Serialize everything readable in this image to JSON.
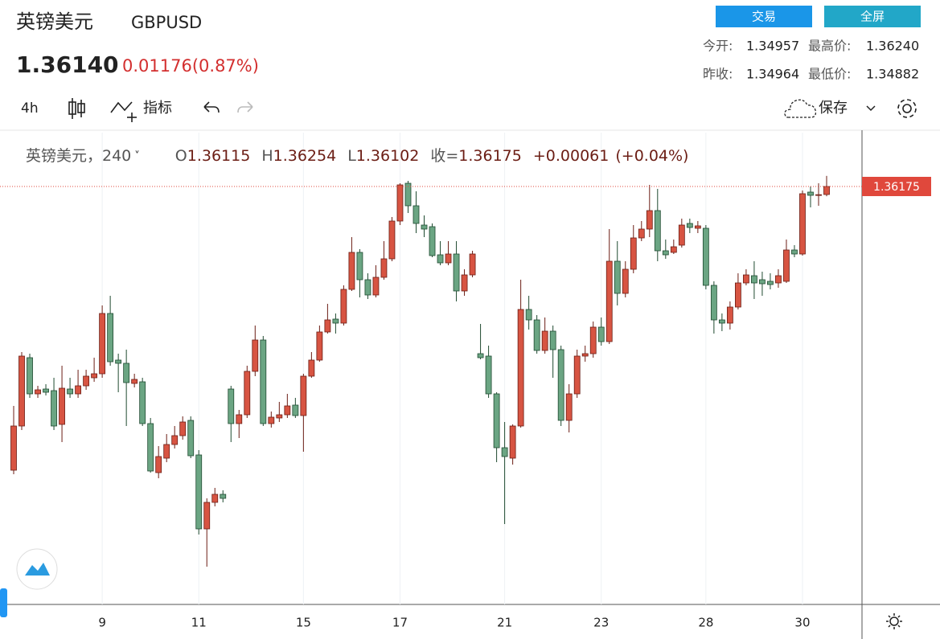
{
  "header": {
    "name": "英镑美元",
    "symbol": "GBPUSD",
    "price": "1.36140",
    "change": "0.01176(0.87%)",
    "buttons": [
      "交易",
      "全屏"
    ],
    "stats": [
      {
        "label": "今开:",
        "value": "1.34957"
      },
      {
        "label": "最高价:",
        "value": "1.36240"
      },
      {
        "label": "昨收:",
        "value": "1.34964"
      },
      {
        "label": "最低价:",
        "value": "1.34882"
      }
    ]
  },
  "toolbar": {
    "interval": "4h",
    "indicators": "指标",
    "save": "保存"
  },
  "chart_data": {
    "type": "candlestick",
    "legend": {
      "title": "英镑美元，240",
      "open_prefix": "O",
      "high_prefix": "H",
      "low_prefix": "L",
      "close_prefix": "收=",
      "change": "+0.00061",
      "change_pct": "(+0.04%)"
    },
    "categories": [
      null,
      null,
      null,
      null,
      null,
      null,
      null,
      null,
      null,
      null,
      null,
      "9",
      null,
      null,
      null,
      null,
      null,
      null,
      null,
      null,
      null,
      null,
      null,
      "11",
      null,
      null,
      null,
      null,
      null,
      null,
      null,
      null,
      null,
      null,
      null,
      null,
      "15",
      null,
      null,
      null,
      null,
      null,
      null,
      null,
      null,
      null,
      null,
      null,
      "17",
      null,
      null,
      null,
      null,
      null,
      null,
      null,
      null,
      null,
      null,
      null,
      null,
      "21",
      null,
      null,
      null,
      null,
      null,
      null,
      null,
      null,
      null,
      null,
      null,
      "23",
      null,
      null,
      null,
      null,
      null,
      null,
      null,
      null,
      null,
      null,
      null,
      null,
      "28",
      null,
      null,
      null,
      null,
      null,
      null,
      null,
      null,
      null,
      null,
      null,
      "30",
      null,
      null,
      null
    ],
    "open": [
      1.34057,
      1.34387,
      1.34897,
      1.34627,
      1.34663,
      1.34651,
      1.34399,
      1.34663,
      1.34627,
      1.34687,
      1.34747,
      1.34777,
      1.35227,
      1.34879,
      1.34855,
      1.34705,
      1.34717,
      1.34405,
      1.34039,
      1.34147,
      1.34249,
      1.34315,
      1.34429,
      1.34171,
      1.33619,
      1.33817,
      1.33877,
      1.34663,
      1.34405,
      1.34471,
      1.34795,
      1.35029,
      1.34405,
      1.34447,
      1.34471,
      1.34543,
      1.34465,
      1.34759,
      1.34879,
      1.35089,
      1.35185,
      1.35155,
      1.35407,
      1.35683,
      1.35479,
      1.35365,
      1.35497,
      1.35635,
      1.35917,
      1.36199,
      1.36031,
      1.35887,
      1.35875,
      1.35665,
      1.35605,
      1.35671,
      1.35395,
      1.35515,
      1.34927,
      1.34909,
      1.34627,
      1.34225,
      1.34147,
      1.34387,
      1.35257,
      1.35179,
      1.34951,
      1.35095,
      1.34957,
      1.34429,
      1.34627,
      1.34909,
      1.34927,
      1.35125,
      1.35017,
      1.35617,
      1.35377,
      1.35557,
      1.35791,
      1.35857,
      1.35995,
      1.35695,
      1.35683,
      1.35737,
      1.35899,
      1.35863,
      1.35863,
      1.35437,
      1.35179,
      1.35155,
      1.35275,
      1.35455,
      1.35509,
      1.35479,
      1.35467,
      1.35455,
      1.35467,
      1.35701,
      1.35671,
      1.36133,
      1.36109,
      1.36115
    ],
    "high": [
      1.34537,
      1.34939,
      1.34927,
      1.34687,
      1.34699,
      1.34747,
      1.34837,
      1.34747,
      1.34807,
      1.34807,
      1.34897,
      1.35287,
      1.35359,
      1.34927,
      1.34957,
      1.34777,
      1.34747,
      1.34447,
      1.34237,
      1.34327,
      1.34387,
      1.34459,
      1.34459,
      1.34207,
      1.33847,
      1.33925,
      1.33907,
      1.34687,
      1.34507,
      1.34837,
      1.35137,
      1.35059,
      1.34495,
      1.34567,
      1.34627,
      1.34597,
      1.34777,
      1.34939,
      1.35137,
      1.35299,
      1.35227,
      1.35437,
      1.35797,
      1.35707,
      1.35527,
      1.35587,
      1.35767,
      1.35947,
      1.36199,
      1.36217,
      1.36139,
      1.35959,
      1.35899,
      1.35767,
      1.35767,
      1.35767,
      1.35557,
      1.35695,
      1.35149,
      1.34987,
      1.34639,
      1.34417,
      1.34399,
      1.35479,
      1.35359,
      1.35215,
      1.35197,
      1.35137,
      1.34987,
      1.34699,
      1.34957,
      1.34987,
      1.35167,
      1.35197,
      1.35857,
      1.35767,
      1.35617,
      1.35887,
      1.35917,
      1.36187,
      1.36157,
      1.35779,
      1.35779,
      1.35935,
      1.35935,
      1.35917,
      1.35887,
      1.35467,
      1.35227,
      1.35317,
      1.35527,
      1.35557,
      1.35617,
      1.35539,
      1.35527,
      1.35557,
      1.35779,
      1.35737,
      1.36145,
      1.36175,
      1.36199,
      1.36254
    ],
    "low": [
      1.34027,
      1.34357,
      1.34597,
      1.34597,
      1.34615,
      1.34357,
      1.34267,
      1.34597,
      1.34597,
      1.34657,
      1.34717,
      1.34747,
      1.34837,
      1.34639,
      1.34387,
      1.34675,
      1.34387,
      1.34039,
      1.33997,
      1.34117,
      1.34219,
      1.34285,
      1.34147,
      1.33577,
      1.33337,
      1.33787,
      1.33817,
      1.34267,
      1.34297,
      1.34447,
      1.34759,
      1.34387,
      1.34375,
      1.34417,
      1.34447,
      1.34447,
      1.34195,
      1.34747,
      1.34867,
      1.35077,
      1.35077,
      1.35137,
      1.35395,
      1.35347,
      1.35335,
      1.35347,
      1.35479,
      1.35617,
      1.35887,
      1.35977,
      1.35827,
      1.35797,
      1.35647,
      1.35587,
      1.35587,
      1.35317,
      1.35359,
      1.35497,
      1.34885,
      1.34597,
      1.34117,
      1.33655,
      1.34099,
      1.34375,
      1.35107,
      1.34927,
      1.34927,
      1.34747,
      1.34387,
      1.34339,
      1.34597,
      1.34867,
      1.34897,
      1.34987,
      1.34999,
      1.35287,
      1.35347,
      1.35527,
      1.35767,
      1.35797,
      1.35617,
      1.35635,
      1.35671,
      1.35719,
      1.35827,
      1.35827,
      1.35407,
      1.35077,
      1.35095,
      1.35107,
      1.35257,
      1.35437,
      1.35335,
      1.35359,
      1.35407,
      1.35419,
      1.35455,
      1.35647,
      1.35659,
      1.36019,
      1.36031,
      1.36102
    ],
    "close": [
      1.34387,
      1.34909,
      1.34627,
      1.34657,
      1.34639,
      1.34387,
      1.34669,
      1.34627,
      1.34687,
      1.34759,
      1.34777,
      1.35227,
      1.34867,
      1.34855,
      1.34711,
      1.34735,
      1.34405,
      1.34051,
      1.34159,
      1.34249,
      1.34315,
      1.34417,
      1.34165,
      1.33619,
      1.33817,
      1.33877,
      1.33847,
      1.34405,
      1.34471,
      1.34795,
      1.35029,
      1.34405,
      1.34453,
      1.34471,
      1.34537,
      1.34465,
      1.34759,
      1.34879,
      1.35089,
      1.35179,
      1.35155,
      1.35407,
      1.35683,
      1.35479,
      1.35365,
      1.35497,
      1.35635,
      1.35917,
      1.36187,
      1.36031,
      1.35899,
      1.35857,
      1.35659,
      1.35605,
      1.35671,
      1.35395,
      1.35515,
      1.35671,
      1.34897,
      1.34627,
      1.34225,
      1.34159,
      1.34387,
      1.35257,
      1.35179,
      1.34951,
      1.35095,
      1.34957,
      1.34429,
      1.34627,
      1.34909,
      1.34927,
      1.35125,
      1.35017,
      1.35617,
      1.35377,
      1.35557,
      1.35791,
      1.35857,
      1.35995,
      1.35695,
      1.35665,
      1.35725,
      1.35887,
      1.35869,
      1.35881,
      1.35437,
      1.35179,
      1.35155,
      1.35275,
      1.35455,
      1.35515,
      1.35455,
      1.35449,
      1.35443,
      1.35509,
      1.35701,
      1.35671,
      1.36121,
      1.36109,
      1.36114,
      1.36175
    ],
    "ylim": [
      1.33055,
      1.36577
    ],
    "up_color": "#d75442",
    "down_color": "#6ba583",
    "up_border": "#6b1d14",
    "down_border": "#1f4a30",
    "last_price_color": "#e0483c",
    "grid": true
  }
}
